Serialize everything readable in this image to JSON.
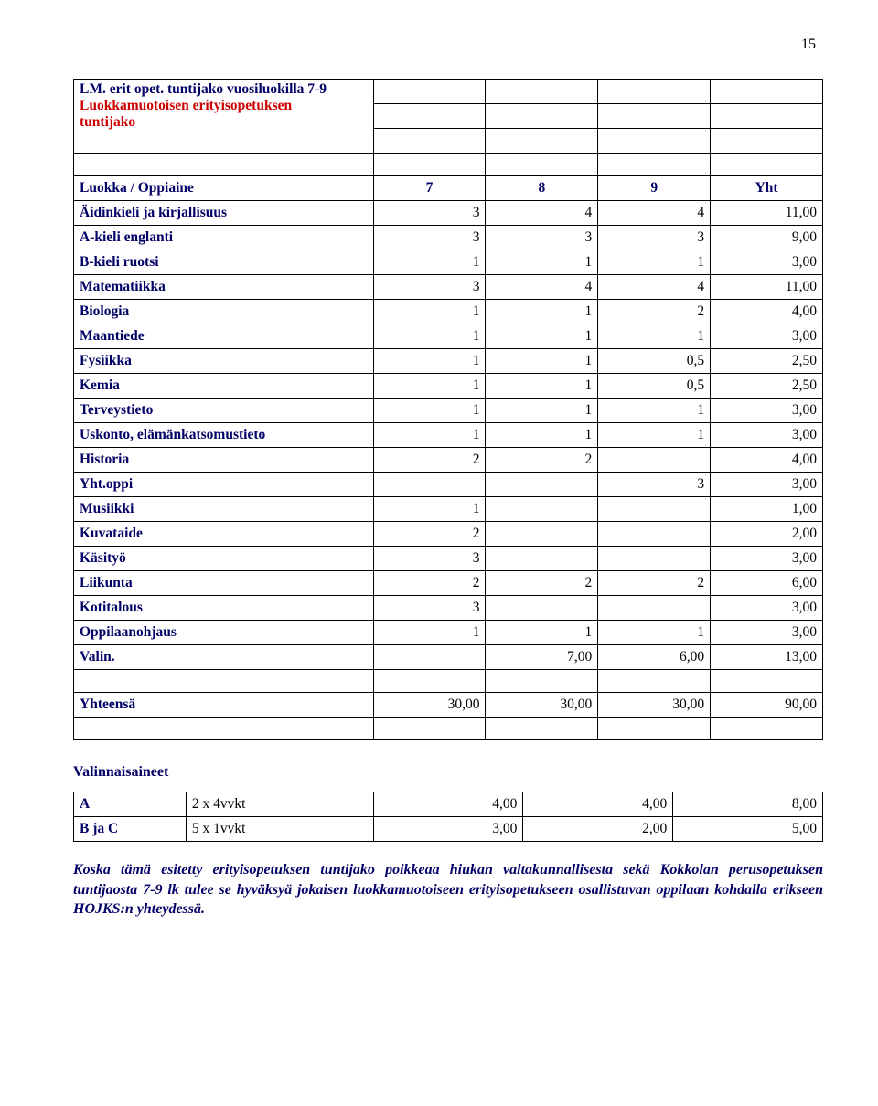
{
  "page_number": "15",
  "title": "LM. erit opet. tuntijako vuosiluokilla 7-9",
  "subtitle_l1": "Luokkamuotoisen erityisopetuksen",
  "subtitle_l2": "tuntijako",
  "table": {
    "header": [
      "Luokka / Oppiaine",
      "7",
      "8",
      "9",
      "Yht"
    ],
    "rows": [
      {
        "label": "Äidinkieli ja kirjallisuus",
        "c": [
          "3",
          "4",
          "4",
          "11,00"
        ]
      },
      {
        "label": "A-kieli englanti",
        "c": [
          "3",
          "3",
          "3",
          "9,00"
        ]
      },
      {
        "label": "B-kieli ruotsi",
        "c": [
          "1",
          "1",
          "1",
          "3,00"
        ]
      },
      {
        "label": "Matematiikka",
        "c": [
          "3",
          "4",
          "4",
          "11,00"
        ]
      },
      {
        "label": "Biologia",
        "c": [
          "1",
          "1",
          "2",
          "4,00"
        ]
      },
      {
        "label": "Maantiede",
        "c": [
          "1",
          "1",
          "1",
          "3,00"
        ]
      },
      {
        "label": "Fysiikka",
        "c": [
          "1",
          "1",
          "0,5",
          "2,50"
        ]
      },
      {
        "label": "Kemia",
        "c": [
          "1",
          "1",
          "0,5",
          "2,50"
        ]
      },
      {
        "label": "Terveystieto",
        "c": [
          "1",
          "1",
          "1",
          "3,00"
        ]
      },
      {
        "label": "Uskonto, elämänkatsomustieto",
        "c": [
          "1",
          "1",
          "1",
          "3,00"
        ]
      },
      {
        "label": "Historia",
        "c": [
          "2",
          "2",
          "",
          "4,00"
        ]
      },
      {
        "label": "Yht.oppi",
        "c": [
          "",
          "",
          "3",
          "3,00"
        ]
      },
      {
        "label": "Musiikki",
        "c": [
          "1",
          "",
          "",
          "1,00"
        ]
      },
      {
        "label": "Kuvataide",
        "c": [
          "2",
          "",
          "",
          "2,00"
        ]
      },
      {
        "label": "Käsityö",
        "c": [
          "3",
          "",
          "",
          "3,00"
        ]
      },
      {
        "label": "Liikunta",
        "c": [
          "2",
          "2",
          "2",
          "6,00"
        ]
      },
      {
        "label": "Kotitalous",
        "c": [
          "3",
          "",
          "",
          "3,00"
        ]
      },
      {
        "label": "Oppilaanohjaus",
        "c": [
          "1",
          "1",
          "1",
          "3,00"
        ]
      },
      {
        "label": "Valin.",
        "c": [
          "",
          "7,00",
          "6,00",
          "13,00"
        ]
      }
    ],
    "total": {
      "label": "Yhteensä",
      "c": [
        "30,00",
        "30,00",
        "30,00",
        "90,00"
      ]
    }
  },
  "electives": {
    "title": "Valinnaisaineet",
    "rows": [
      {
        "label": "A",
        "note": "2 x 4vvkt",
        "c": [
          "4,00",
          "4,00",
          "8,00"
        ]
      },
      {
        "label": "B ja C",
        "note": "5 x 1vvkt",
        "c": [
          "3,00",
          "2,00",
          "5,00"
        ]
      }
    ]
  },
  "footnote": "Koska tämä esitetty erityisopetuksen tuntijako poikkeaa hiukan valtakunnallisesta sekä Kokkolan perusopetuksen tuntijaosta 7-9 lk tulee se hyväksyä jokaisen luokkamuotoiseen erityisopetukseen osallistuvan oppilaan kohdalla erikseen HOJKS:n yhteydessä."
}
